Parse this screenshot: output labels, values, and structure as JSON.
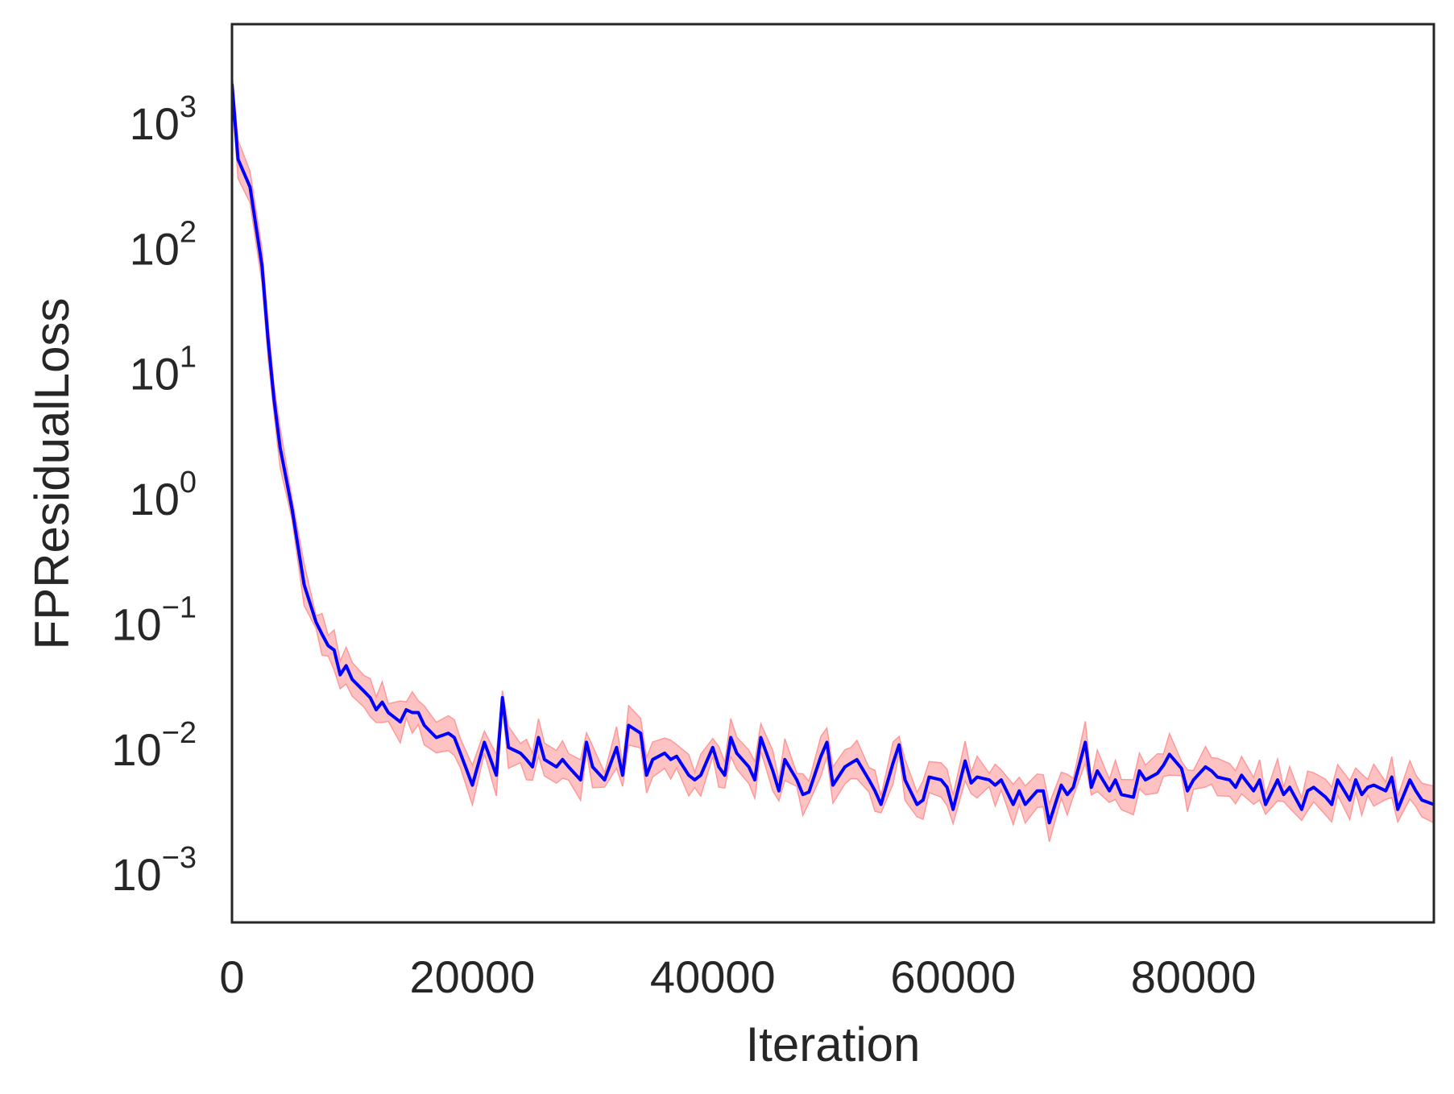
{
  "chart_data": {
    "type": "line",
    "title": "",
    "xlabel": "Iteration",
    "ylabel": "FPResidualLoss",
    "xlim": [
      0,
      100000
    ],
    "ylim": [
      0.0004,
      6000
    ],
    "yscale": "log",
    "grid": false,
    "x_ticks": [
      {
        "value": 0,
        "label": "0"
      },
      {
        "value": 20000,
        "label": "20000"
      },
      {
        "value": 40000,
        "label": "40000"
      },
      {
        "value": 60000,
        "label": "60000"
      },
      {
        "value": 80000,
        "label": "80000"
      }
    ],
    "y_ticks": [
      {
        "value": 0.001,
        "base": "10",
        "exp": "−3"
      },
      {
        "value": 0.01,
        "base": "10",
        "exp": "−2"
      },
      {
        "value": 0.1,
        "base": "10",
        "exp": "−1"
      },
      {
        "value": 1,
        "base": "10",
        "exp": "0"
      },
      {
        "value": 10,
        "base": "10",
        "exp": "1"
      },
      {
        "value": 100,
        "base": "10",
        "exp": "2"
      },
      {
        "value": 1000,
        "base": "10",
        "exp": "3"
      }
    ],
    "series": [
      {
        "line_color": "#0000ff",
        "band_color": "#ff9999",
        "x": [
          0,
          500,
          1500,
          2500,
          3000,
          3500,
          4000,
          5000,
          6000,
          7000,
          7500,
          8000,
          8500,
          9000,
          9500,
          10000,
          11000,
          11500,
          12000,
          12500,
          13000,
          14000,
          14500,
          15000,
          15500,
          16000,
          17000,
          18000,
          18500,
          19000,
          20000,
          21000,
          22000,
          22500,
          23000,
          24000,
          24500,
          25000,
          25500,
          26000,
          27000,
          27500,
          28000,
          29000,
          29500,
          30000,
          31000,
          32000,
          32500,
          33000,
          34000,
          34500,
          35000,
          36000,
          36500,
          37000,
          38000,
          38500,
          39000,
          40000,
          40500,
          41000,
          41500,
          42000,
          43000,
          43500,
          44000,
          45000,
          45500,
          46000,
          47000,
          47500,
          48000,
          49000,
          49500,
          50000,
          51000,
          51500,
          52000,
          53000,
          53500,
          54000,
          55000,
          55500,
          56000,
          57000,
          57500,
          58000,
          59000,
          59500,
          60000,
          61000,
          61500,
          62000,
          63000,
          63500,
          64000,
          65000,
          65500,
          66000,
          67000,
          67500,
          68000,
          69000,
          69500,
          70000,
          71000,
          71500,
          72000,
          73000,
          73500,
          74000,
          75000,
          75500,
          76000,
          77000,
          77500,
          78000,
          79000,
          79500,
          80000,
          81000,
          81500,
          82000,
          83000,
          83500,
          84000,
          85000,
          85500,
          86000,
          87000,
          87500,
          88000,
          89000,
          89500,
          90000,
          91000,
          91500,
          92000,
          93000,
          93500,
          94000,
          94500,
          95000,
          96000,
          96500,
          97000,
          98000,
          98500,
          99000,
          100000
        ],
        "y": [
          2000,
          500,
          300,
          70,
          18,
          6,
          2.5,
          0.8,
          0.2,
          0.1,
          0.08,
          0.065,
          0.06,
          0.038,
          0.045,
          0.035,
          0.028,
          0.025,
          0.02,
          0.023,
          0.019,
          0.016,
          0.02,
          0.019,
          0.019,
          0.015,
          0.012,
          0.013,
          0.012,
          0.009,
          0.005,
          0.011,
          0.006,
          0.025,
          0.01,
          0.009,
          0.008,
          0.007,
          0.012,
          0.008,
          0.007,
          0.008,
          0.007,
          0.0055,
          0.011,
          0.007,
          0.0055,
          0.01,
          0.006,
          0.015,
          0.013,
          0.006,
          0.008,
          0.009,
          0.008,
          0.0085,
          0.006,
          0.0055,
          0.006,
          0.01,
          0.007,
          0.006,
          0.012,
          0.009,
          0.007,
          0.0055,
          0.012,
          0.0065,
          0.0045,
          0.008,
          0.0055,
          0.0042,
          0.0044,
          0.0085,
          0.011,
          0.005,
          0.007,
          0.0075,
          0.008,
          0.0055,
          0.0045,
          0.0035,
          0.0075,
          0.0105,
          0.0055,
          0.0035,
          0.0038,
          0.0058,
          0.0055,
          0.0048,
          0.0032,
          0.0078,
          0.0052,
          0.0058,
          0.0055,
          0.005,
          0.0055,
          0.0035,
          0.0045,
          0.0035,
          0.0045,
          0.0045,
          0.0025,
          0.005,
          0.0042,
          0.0048,
          0.011,
          0.0048,
          0.0065,
          0.0045,
          0.0055,
          0.0042,
          0.004,
          0.0065,
          0.0055,
          0.0062,
          0.0072,
          0.0088,
          0.0068,
          0.0045,
          0.0055,
          0.007,
          0.0065,
          0.0058,
          0.0055,
          0.0048,
          0.006,
          0.0045,
          0.0055,
          0.0035,
          0.0055,
          0.0042,
          0.0048,
          0.0032,
          0.0045,
          0.0048,
          0.004,
          0.0035,
          0.0055,
          0.0038,
          0.0055,
          0.0042,
          0.0048,
          0.005,
          0.0045,
          0.0058,
          0.0032,
          0.0055,
          0.0045,
          0.0038,
          0.0035
        ]
      }
    ]
  }
}
